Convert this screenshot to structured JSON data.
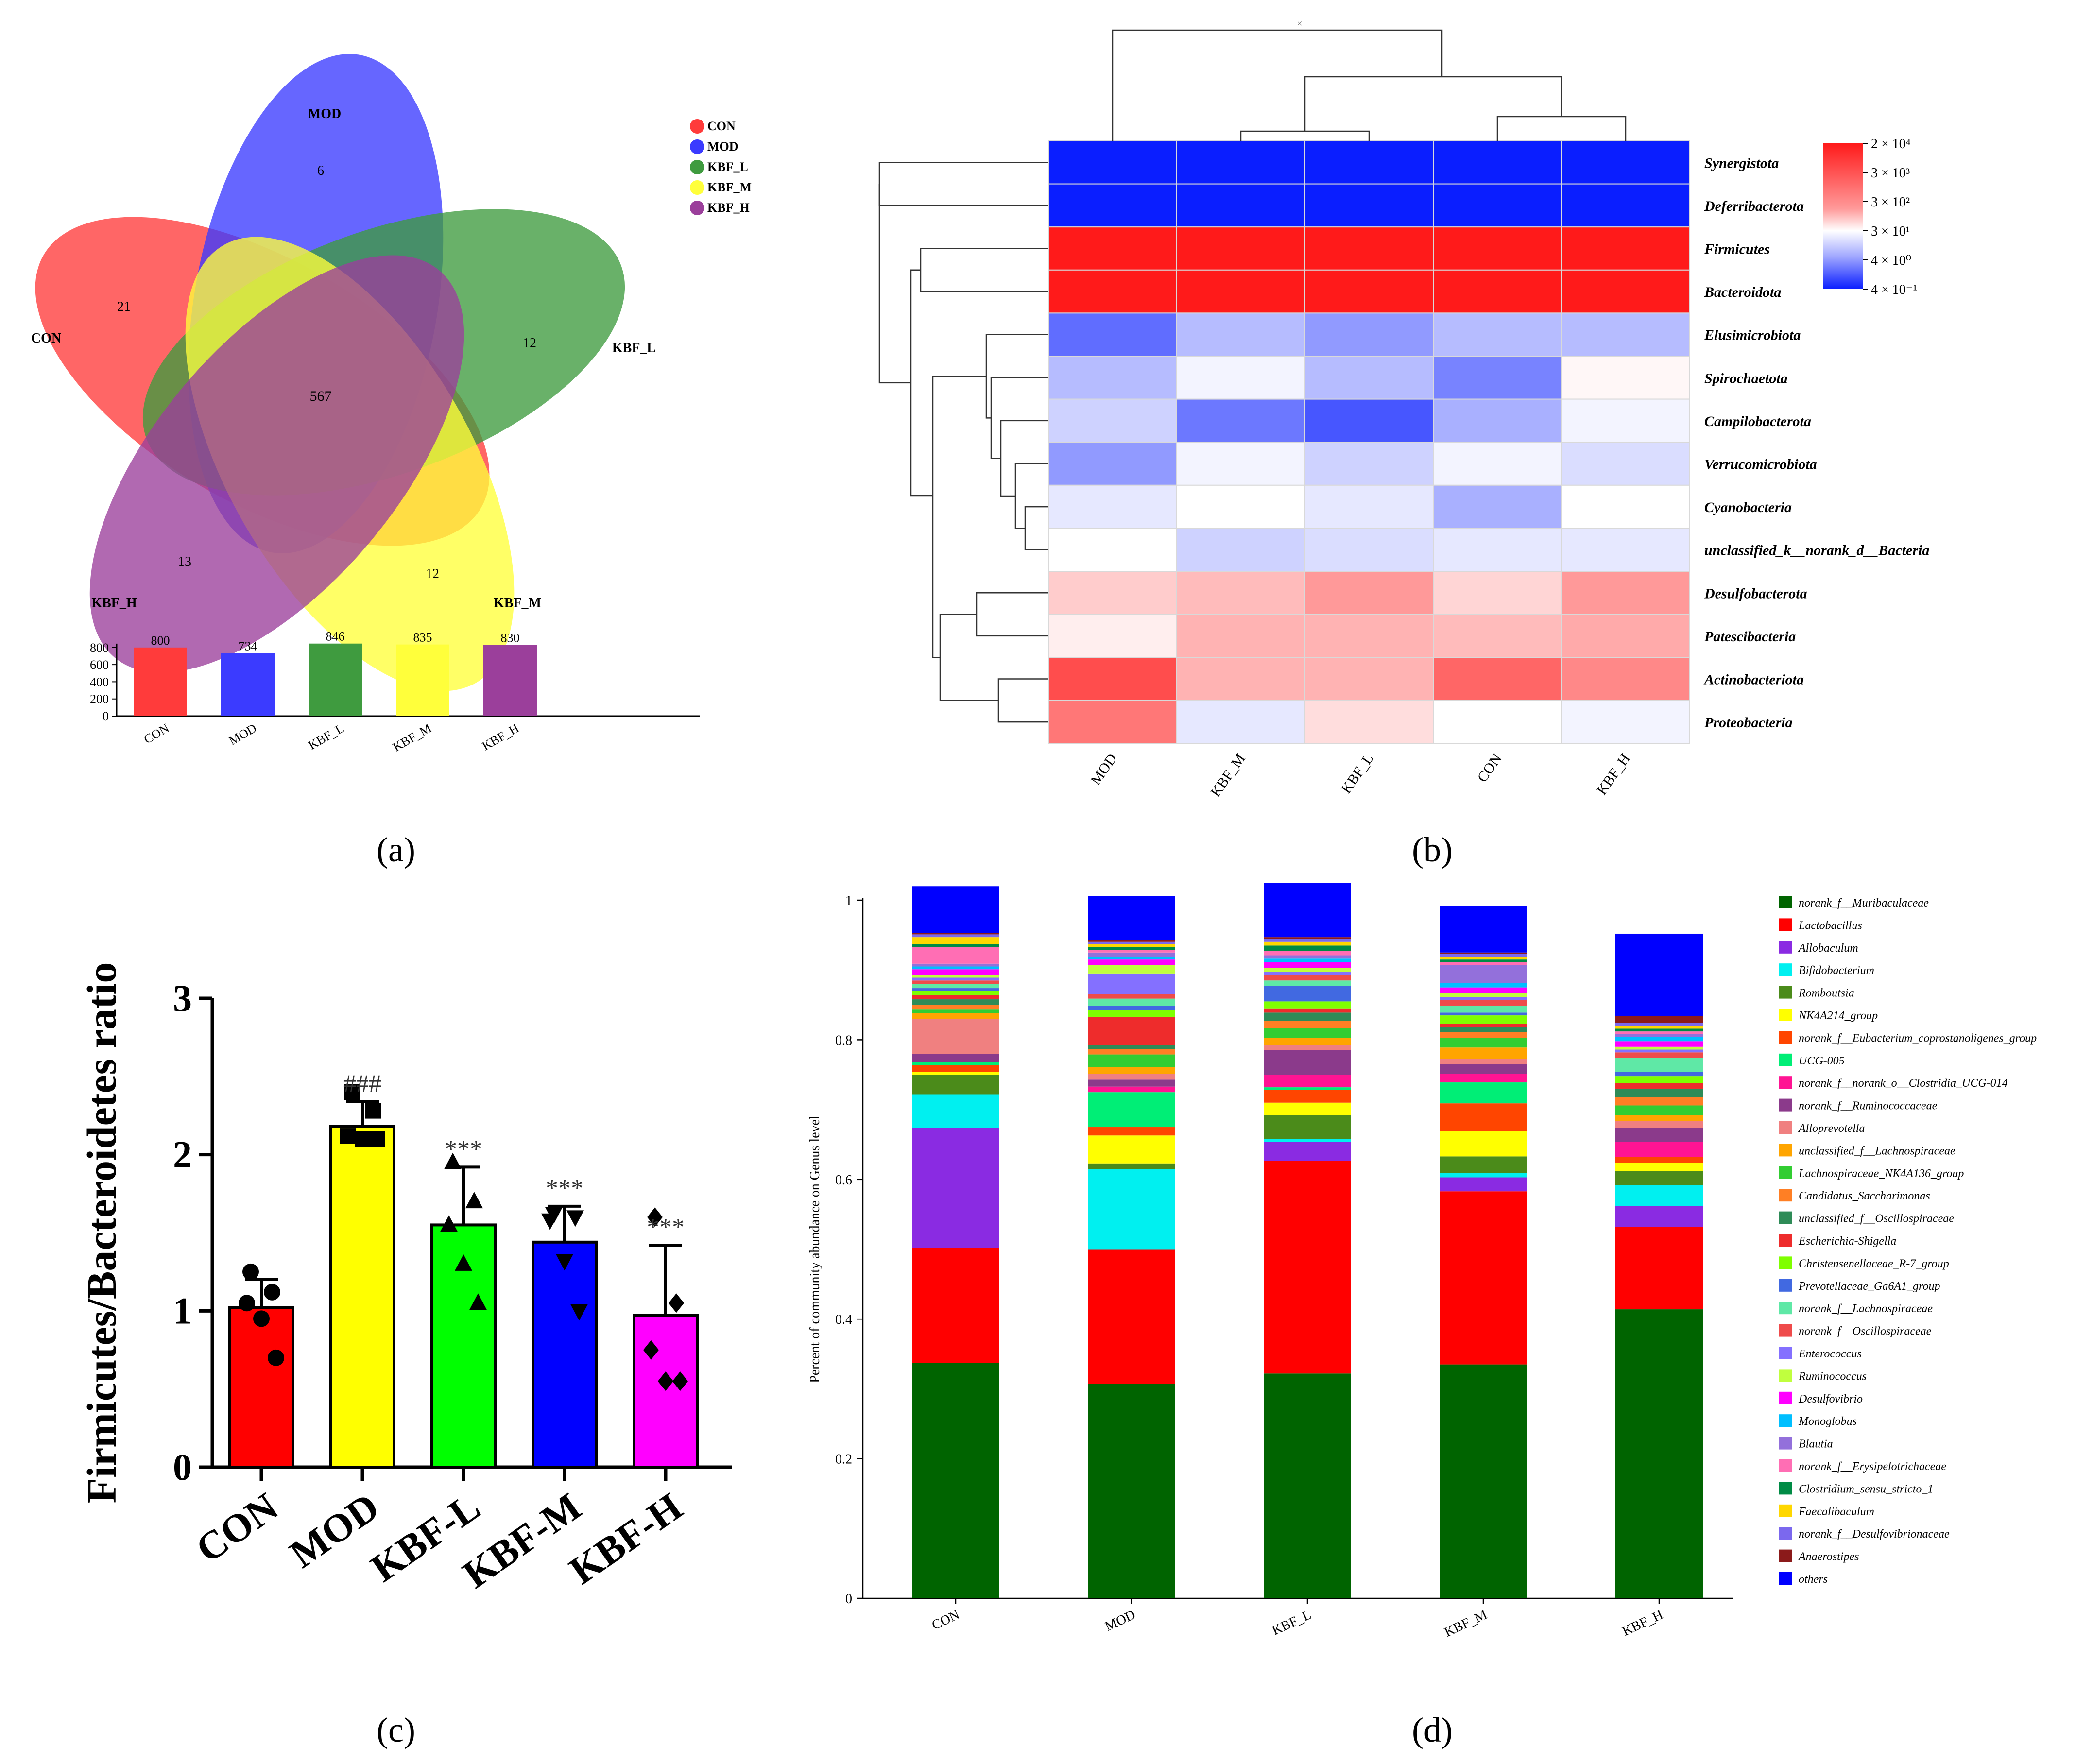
{
  "panel_labels": {
    "a": "(a)",
    "b": "(b)",
    "c": "(c)",
    "d": "(d)"
  },
  "colors": {
    "CON": "#ff3b3b",
    "MOD": "#3b3bff",
    "KBF_L": "#3f9b3f",
    "KBF_M": "#ffff3b",
    "KBF_H": "#9b3f9b",
    "heat_low": "#0a1eff",
    "heat_mid": "#ffffff",
    "heat_high": "#ff1a1a"
  },
  "chart_data": [
    {
      "panel": "a",
      "type": "venn",
      "sets": [
        {
          "name": "CON",
          "label": "CON",
          "unique": 21,
          "total": 800
        },
        {
          "name": "MOD",
          "label": "MOD",
          "unique": 6,
          "total": 734
        },
        {
          "name": "KBF_L",
          "label": "KBF_L",
          "unique": 12,
          "total": 846
        },
        {
          "name": "KBF_M",
          "label": "KBF_M",
          "unique": 12,
          "total": 835
        },
        {
          "name": "KBF_H",
          "label": "KBF_H",
          "unique": 13,
          "total": 830
        }
      ],
      "shared_all": 567,
      "legend": [
        "CON",
        "MOD",
        "KBF_L",
        "KBF_M",
        "KBF_H"
      ],
      "bar": {
        "type": "bar",
        "categories": [
          "CON",
          "MOD",
          "KBF_L",
          "KBF_M",
          "KBF_H"
        ],
        "values": [
          800,
          734,
          846,
          835,
          830
        ],
        "yticks": [
          "0",
          "200",
          "400",
          "600",
          "800"
        ],
        "ylim": [
          0,
          850
        ]
      }
    },
    {
      "panel": "b",
      "type": "heatmap",
      "columns": [
        "MOD",
        "KBF_M",
        "KBF_L",
        "CON",
        "KBF_H"
      ],
      "rows": [
        "Synergistota",
        "Deferribacterota",
        "Firmicutes",
        "Bacteroidota",
        "Elusimicrobiota",
        "Spirochaetota",
        "Campilobacterota",
        "Verrucomicrobiota",
        "Cyanobacteria",
        "unclassified_k__norank_d__Bacteria",
        "Desulfobacterota",
        "Patescibacteria",
        "Actinobacteriota",
        "Proteobacteria"
      ],
      "values_log10": [
        [
          -0.4,
          -0.4,
          -0.4,
          -0.4,
          -0.4
        ],
        [
          -0.4,
          -0.4,
          -0.4,
          -0.4,
          -0.4
        ],
        [
          4.3,
          4.3,
          4.3,
          4.3,
          4.3
        ],
        [
          4.3,
          4.3,
          4.3,
          4.3,
          4.3
        ],
        [
          0.3,
          1.0,
          0.7,
          1.0,
          1.0
        ],
        [
          1.0,
          1.5,
          1.0,
          0.5,
          1.7
        ],
        [
          1.2,
          0.4,
          0.1,
          0.9,
          1.5
        ],
        [
          0.7,
          1.5,
          1.2,
          1.5,
          1.3
        ],
        [
          1.4,
          1.6,
          1.4,
          0.9,
          1.6
        ],
        [
          1.6,
          1.2,
          1.3,
          1.4,
          1.4
        ],
        [
          2.2,
          2.4,
          2.8,
          2.1,
          2.8
        ],
        [
          1.8,
          2.5,
          2.5,
          2.4,
          2.6
        ],
        [
          3.7,
          2.5,
          2.5,
          3.4,
          3.0
        ],
        [
          3.2,
          1.4,
          2.0,
          1.6,
          1.5
        ]
      ],
      "colorbar_ticks": [
        "2 × 10⁴",
        "3 × 10³",
        "3 × 10²",
        "3 × 10¹",
        "4 × 10⁰",
        "4 × 10⁻¹"
      ],
      "colorbar_range_log10": [
        -0.4,
        4.3
      ],
      "top_dendrogram_mark": "×"
    },
    {
      "panel": "c",
      "type": "bar",
      "categories": [
        "CON",
        "MOD",
        "KBF-L",
        "KBF-M",
        "KBF-H"
      ],
      "values": [
        1.02,
        2.18,
        1.55,
        1.44,
        0.97
      ],
      "errors": [
        0.18,
        0.16,
        0.37,
        0.23,
        0.45
      ],
      "points": [
        [
          1.25,
          1.12,
          1.05,
          0.95,
          0.7
        ],
        [
          2.4,
          2.28,
          2.12,
          2.1,
          2.1
        ],
        [
          1.95,
          1.7,
          1.55,
          1.3,
          1.05
        ],
        [
          1.62,
          1.6,
          1.58,
          1.32,
          1.0
        ],
        [
          1.6,
          1.05,
          0.75,
          0.55,
          0.55
        ]
      ],
      "markers": [
        "circle",
        "square",
        "triangle",
        "triangle-down",
        "diamond"
      ],
      "annotations": [
        "",
        "###",
        "***",
        "***",
        "***"
      ],
      "bar_colors": [
        "#ff0000",
        "#ffff00",
        "#00ff00",
        "#0000ff",
        "#ff00ff"
      ],
      "ylabel": "Firmicutes/Bacteroidetes ratio",
      "yticks": [
        "0",
        "1",
        "2",
        "3"
      ],
      "ylim": [
        0,
        3
      ]
    },
    {
      "panel": "d",
      "type": "bar",
      "stacked": true,
      "categories": [
        "CON",
        "MOD",
        "KBF_L",
        "KBF_M",
        "KBF_H"
      ],
      "ylabel": "Percent of community abundance on Genus level",
      "yticks": [
        "0",
        "0.2",
        "0.4",
        "0.6",
        "0.8",
        "1"
      ],
      "ylim": [
        0,
        1
      ],
      "series": [
        {
          "name": "norank_f__Muribaculaceae",
          "color": "#006400",
          "values": [
            0.337,
            0.307,
            0.322,
            0.335,
            0.414
          ]
        },
        {
          "name": "Lactobacillus",
          "color": "#ff0000",
          "values": [
            0.165,
            0.193,
            0.305,
            0.248,
            0.118
          ]
        },
        {
          "name": "Allobaculum",
          "color": "#8a2be2",
          "values": [
            0.172,
            0.0,
            0.027,
            0.02,
            0.03
          ]
        },
        {
          "name": "Bifidobacterium",
          "color": "#00f0f0",
          "values": [
            0.048,
            0.115,
            0.004,
            0.006,
            0.03
          ]
        },
        {
          "name": "Romboutsia",
          "color": "#4b8b1a",
          "values": [
            0.028,
            0.008,
            0.034,
            0.024,
            0.02
          ]
        },
        {
          "name": "NK4A214_group",
          "color": "#ffff00",
          "values": [
            0.004,
            0.04,
            0.018,
            0.036,
            0.012
          ]
        },
        {
          "name": "norank_f__Eubacterium_coprostanoligenes_group",
          "color": "#ff4500",
          "values": [
            0.01,
            0.012,
            0.018,
            0.04,
            0.008
          ]
        },
        {
          "name": "UCG-005",
          "color": "#00ee76",
          "values": [
            0.004,
            0.05,
            0.004,
            0.03,
            0.0
          ]
        },
        {
          "name": "norank_f__norank_o__Clostridia_UCG-014",
          "color": "#ff1493",
          "values": [
            0.0,
            0.008,
            0.018,
            0.012,
            0.022
          ]
        },
        {
          "name": "norank_f__Ruminococcaceae",
          "color": "#8b3a8b",
          "values": [
            0.012,
            0.01,
            0.035,
            0.014,
            0.02
          ]
        },
        {
          "name": "Alloprevotella",
          "color": "#f08080",
          "values": [
            0.05,
            0.008,
            0.008,
            0.008,
            0.01
          ]
        },
        {
          "name": "unclassified_f__Lachnospiraceae",
          "color": "#ffa500",
          "values": [
            0.008,
            0.01,
            0.01,
            0.016,
            0.008
          ]
        },
        {
          "name": "Lachnospiraceae_NK4A136_group",
          "color": "#32cd32",
          "values": [
            0.006,
            0.018,
            0.014,
            0.014,
            0.014
          ]
        },
        {
          "name": "Candidatus_Saccharimonas",
          "color": "#ff7f24",
          "values": [
            0.006,
            0.008,
            0.01,
            0.008,
            0.012
          ]
        },
        {
          "name": "unclassified_f__Oscillospiraceae",
          "color": "#2e8b57",
          "values": [
            0.008,
            0.006,
            0.012,
            0.008,
            0.012
          ]
        },
        {
          "name": "Escherichia-Shigella",
          "color": "#ee2c2c",
          "values": [
            0.006,
            0.04,
            0.006,
            0.004,
            0.008
          ]
        },
        {
          "name": "Christensenellaceae_R-7_group",
          "color": "#7fff00",
          "values": [
            0.006,
            0.01,
            0.01,
            0.012,
            0.01
          ]
        },
        {
          "name": "Prevotellaceae_Ga6A1_group",
          "color": "#4169e1",
          "values": [
            0.004,
            0.006,
            0.022,
            0.004,
            0.006
          ]
        },
        {
          "name": "norank_f__Lachnospiraceae",
          "color": "#5fe8a6",
          "values": [
            0.006,
            0.01,
            0.008,
            0.01,
            0.02
          ]
        },
        {
          "name": "norank_f__Oscillospiraceae",
          "color": "#ef4b4b",
          "values": [
            0.005,
            0.006,
            0.008,
            0.008,
            0.008
          ]
        },
        {
          "name": "Enterococcus",
          "color": "#8470ff",
          "values": [
            0.004,
            0.03,
            0.004,
            0.004,
            0.004
          ]
        },
        {
          "name": "Ruminococcus",
          "color": "#c0ff3e",
          "values": [
            0.004,
            0.012,
            0.006,
            0.006,
            0.004
          ]
        },
        {
          "name": "Desulfovibrio",
          "color": "#ff00ff",
          "values": [
            0.008,
            0.008,
            0.008,
            0.008,
            0.008
          ]
        },
        {
          "name": "Monoglobus",
          "color": "#00bfff",
          "values": [
            0.004,
            0.004,
            0.006,
            0.006,
            0.006
          ]
        },
        {
          "name": "Blautia",
          "color": "#9370db",
          "values": [
            0.004,
            0.006,
            0.004,
            0.026,
            0.004
          ]
        },
        {
          "name": "norank_f__Erysipelotrichaceae",
          "color": "#ff6eb4",
          "values": [
            0.024,
            0.004,
            0.006,
            0.004,
            0.004
          ]
        },
        {
          "name": "Clostridium_sensu_stricto_1",
          "color": "#008b45",
          "values": [
            0.004,
            0.004,
            0.008,
            0.004,
            0.004
          ]
        },
        {
          "name": "Faecalibaculum",
          "color": "#ffd700",
          "values": [
            0.01,
            0.004,
            0.006,
            0.004,
            0.004
          ]
        },
        {
          "name": "norank_f__Desulfovibrionaceae",
          "color": "#7b68ee",
          "values": [
            0.004,
            0.004,
            0.004,
            0.004,
            0.004
          ]
        },
        {
          "name": "Anaerostipes",
          "color": "#8b1a1a",
          "values": [
            0.002,
            0.002,
            0.002,
            0.002,
            0.01
          ]
        },
        {
          "name": "others",
          "color": "#0000ff",
          "values": [
            0.067,
            0.063,
            0.078,
            0.067,
            0.118
          ]
        }
      ]
    }
  ]
}
